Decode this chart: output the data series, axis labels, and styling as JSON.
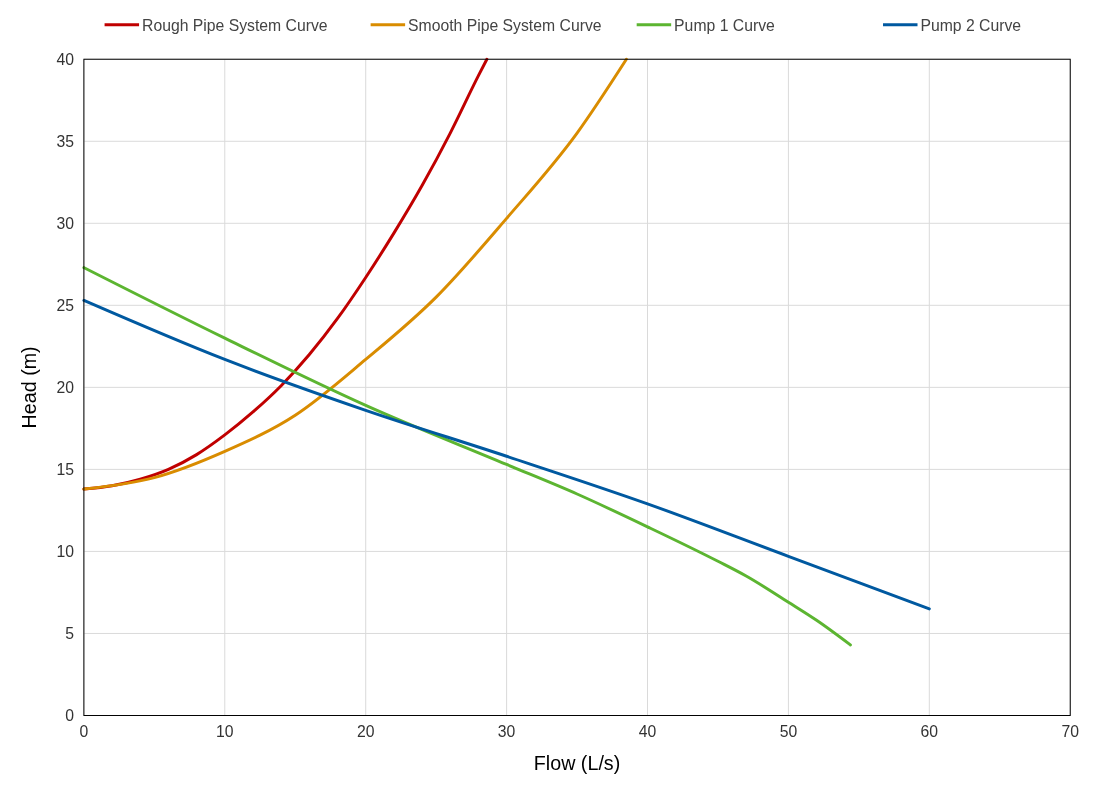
{
  "chart_data": {
    "type": "line",
    "xlabel": "Flow (L/s)",
    "ylabel": "Head (m)",
    "xlim": [
      0,
      70
    ],
    "xticks": [
      0,
      10,
      20,
      30,
      40,
      50,
      60,
      70
    ],
    "ylim": [
      0,
      40
    ],
    "yticks": [
      0,
      5,
      10,
      15,
      20,
      25,
      30,
      35,
      40
    ],
    "grid": true,
    "legend": "top",
    "marker": "none",
    "line_style": "solid",
    "series": [
      {
        "name": "Rough Pipe System Curve",
        "color": "#c00000",
        "x": [
          0,
          2,
          4,
          6,
          8,
          10,
          12,
          14,
          16,
          18,
          20,
          22,
          24,
          26,
          28,
          28.6
        ],
        "values": [
          13.8,
          14.0,
          14.4,
          15.0,
          15.9,
          17.1,
          18.5,
          20.1,
          22.0,
          24.2,
          26.7,
          29.4,
          32.3,
          35.5,
          39.0,
          40
        ]
      },
      {
        "name": "Smooth Pipe System Curve",
        "color": "#d98c00",
        "x": [
          0,
          5,
          10,
          15,
          20,
          25,
          30,
          35,
          38.5
        ],
        "values": [
          13.8,
          14.5,
          16.1,
          18.3,
          21.7,
          25.5,
          30.3,
          35.5,
          40
        ]
      },
      {
        "name": "Pump 1 Curve",
        "color": "#5cb531",
        "x": [
          0,
          10,
          20,
          30,
          35,
          40,
          45,
          47,
          50,
          52,
          54.4
        ],
        "values": [
          27.3,
          23.0,
          18.9,
          15.3,
          13.5,
          11.5,
          9.4,
          8.5,
          6.9,
          5.8,
          4.3
        ]
      },
      {
        "name": "Pump 2 Curve",
        "color": "#0059a0",
        "x": [
          0,
          10,
          20,
          30,
          40,
          50,
          60
        ],
        "values": [
          25.3,
          21.7,
          18.6,
          15.8,
          12.9,
          9.7,
          6.5
        ]
      }
    ]
  }
}
